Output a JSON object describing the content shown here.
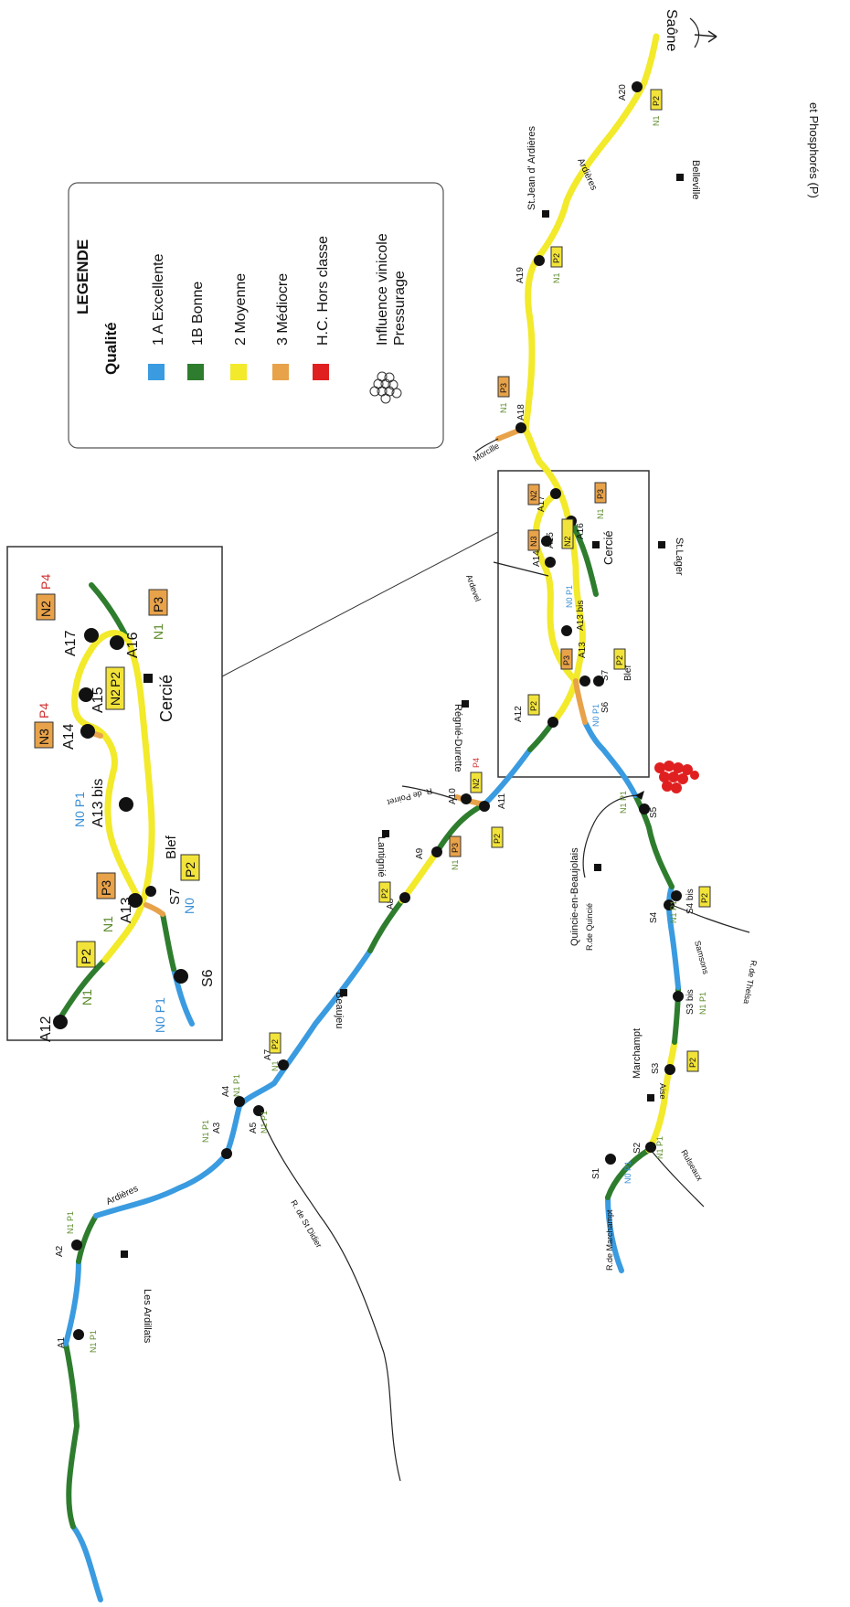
{
  "header_text": "et Phosphorés (P)",
  "legend": {
    "title": "LEGENDE",
    "subtitle": "Qualité",
    "items": [
      {
        "label": "1 A Excellente",
        "color": "#3a9be0"
      },
      {
        "label": "1B Bonne",
        "color": "#2e7d2e"
      },
      {
        "label": "2 Moyenne",
        "color": "#f2ea2a"
      },
      {
        "label": "3 Médiocre",
        "color": "#e8a24a"
      },
      {
        "label": "H.C. Hors classe",
        "color": "#e02020"
      }
    ],
    "influence": "Influence vinicole",
    "pressurage": "Pressurage"
  },
  "towns": {
    "les_ardillats": "Les Ardillats",
    "beaujeu": "Beaujeu",
    "lantignie": "Lantignié",
    "regnie": "Régnié-Durette",
    "quincie": "Quincie-en-Beaujolais",
    "marchampt": "Marchampt",
    "st_lager": "St.Lager",
    "cercie": "Cercié",
    "st_jean": "St.Jean d' Ardières",
    "belleville": "Belleville"
  },
  "rivers": {
    "ardieres": "Ardières",
    "saone": "Saône",
    "r_st_didier": "R. de St Didier",
    "r_quincie": "R.de Quincié",
    "r_marchampt": "R.de Marchampt",
    "samsons": "Samsons",
    "r_thelsa": "R.de Thelsa",
    "r_saint": "R. de Poirret",
    "morcille": "Morcille",
    "ardevel": "Ardevel",
    "blef": "Blef",
    "aise": "Aise",
    "rulseaux": "Rulseaux"
  },
  "stations": {
    "a1": "A1",
    "a2": "A2",
    "a3": "A3",
    "a4": "A4",
    "a5": "A5",
    "a7": "A7",
    "a8": "A8",
    "a9": "A9",
    "a10": "A10",
    "a11": "A11",
    "a12": "A12",
    "a13": "A13",
    "a13bis": "A13 bis",
    "a14": "A14",
    "a15": "A15",
    "a16": "A16",
    "a17": "A17",
    "a18": "A18",
    "a19": "A19",
    "a20": "A20",
    "s1": "S1",
    "s2": "S2",
    "s3": "S3",
    "s3bis": "S3 bis",
    "s4": "S4",
    "s4bis": "S4 bis",
    "s5": "S5",
    "s6": "S6",
    "s7": "S7"
  },
  "codes": {
    "n0": "N0",
    "n1": "N1",
    "n2": "N2",
    "n3": "N3",
    "p1": "P1",
    "p2": "P2",
    "p3": "P3",
    "p4": "P4",
    "n1p1": "N1 P1",
    "n0p1": "N0 P1"
  }
}
